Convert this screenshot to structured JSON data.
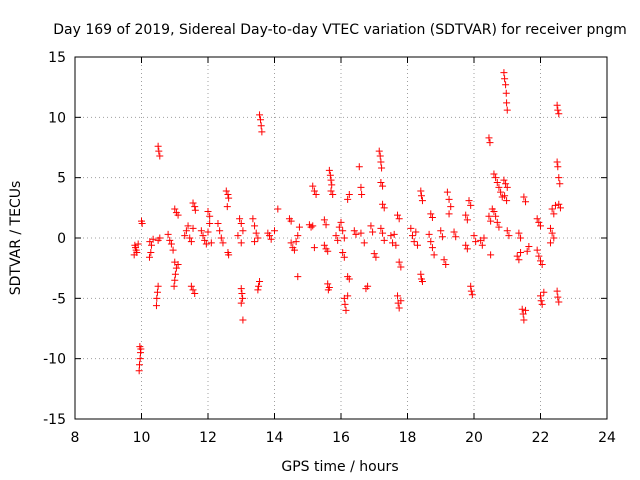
{
  "chart_data": {
    "type": "scatter",
    "title": "Day 169 of 2019, Sidereal Day-to-day VTEC variation (SDTVAR) for receiver pngm",
    "xlabel": "GPS time / hours",
    "ylabel": "SDTVAR / TECUs",
    "xlim": [
      8,
      24
    ],
    "ylim": [
      -15,
      15
    ],
    "xticks": [
      "8",
      "10",
      "12",
      "14",
      "16",
      "18",
      "20",
      "22",
      "24"
    ],
    "yticks": [
      "-15",
      "-10",
      "-5",
      "0",
      "5",
      "10",
      "15"
    ],
    "grid": true,
    "marker": "+",
    "marker_color": "#ff0000",
    "series": [
      {
        "name": "SDTVAR",
        "points": [
          [
            9.8,
            -0.6
          ],
          [
            9.82,
            -0.8
          ],
          [
            9.84,
            -1.0
          ],
          [
            9.86,
            -1.2
          ],
          [
            9.78,
            -1.4
          ],
          [
            9.9,
            -0.5
          ],
          [
            9.95,
            -9.0
          ],
          [
            9.97,
            -9.5
          ],
          [
            9.96,
            -10.0
          ],
          [
            9.94,
            -10.5
          ],
          [
            9.93,
            -11.0
          ],
          [
            9.98,
            -9.2
          ],
          [
            10.0,
            1.4
          ],
          [
            10.02,
            1.2
          ],
          [
            10.25,
            -0.3
          ],
          [
            10.3,
            -0.6
          ],
          [
            10.28,
            -1.2
          ],
          [
            10.24,
            -1.6
          ],
          [
            10.35,
            -0.1
          ],
          [
            10.5,
            7.6
          ],
          [
            10.52,
            7.2
          ],
          [
            10.55,
            6.8
          ],
          [
            10.5,
            -4.0
          ],
          [
            10.48,
            -4.5
          ],
          [
            10.46,
            -5.0
          ],
          [
            10.45,
            -5.6
          ],
          [
            10.5,
            -0.2
          ],
          [
            10.55,
            0.0
          ],
          [
            10.8,
            0.3
          ],
          [
            10.85,
            -0.2
          ],
          [
            10.9,
            -0.5
          ],
          [
            10.95,
            -1.0
          ],
          [
            11.0,
            2.4
          ],
          [
            11.05,
            2.1
          ],
          [
            11.1,
            1.9
          ],
          [
            11.0,
            -2.0
          ],
          [
            11.05,
            -2.5
          ],
          [
            11.02,
            -3.0
          ],
          [
            11.0,
            -3.5
          ],
          [
            10.98,
            -4.0
          ],
          [
            11.1,
            -2.2
          ],
          [
            11.3,
            0.2
          ],
          [
            11.35,
            0.6
          ],
          [
            11.4,
            1.0
          ],
          [
            11.45,
            0.0
          ],
          [
            11.5,
            -0.3
          ],
          [
            11.55,
            0.8
          ],
          [
            11.55,
            2.9
          ],
          [
            11.6,
            2.6
          ],
          [
            11.62,
            2.3
          ],
          [
            11.5,
            -4.0
          ],
          [
            11.55,
            -4.3
          ],
          [
            11.6,
            -4.6
          ],
          [
            11.8,
            0.6
          ],
          [
            11.85,
            0.2
          ],
          [
            11.9,
            -0.2
          ],
          [
            11.95,
            -0.5
          ],
          [
            12.0,
            0.5
          ],
          [
            12.05,
            1.2
          ],
          [
            12.0,
            2.2
          ],
          [
            12.05,
            1.8
          ],
          [
            12.1,
            -0.4
          ],
          [
            12.3,
            1.2
          ],
          [
            12.35,
            0.6
          ],
          [
            12.4,
            0.0
          ],
          [
            12.45,
            -0.4
          ],
          [
            12.55,
            3.9
          ],
          [
            12.6,
            3.6
          ],
          [
            12.62,
            3.3
          ],
          [
            12.58,
            2.6
          ],
          [
            12.6,
            -1.2
          ],
          [
            12.62,
            -1.4
          ],
          [
            12.95,
            1.6
          ],
          [
            13.0,
            1.2
          ],
          [
            13.05,
            0.6
          ],
          [
            13.0,
            -0.4
          ],
          [
            12.9,
            0.2
          ],
          [
            13.0,
            -4.2
          ],
          [
            13.02,
            -4.6
          ],
          [
            13.04,
            -5.0
          ],
          [
            13.0,
            -5.4
          ],
          [
            13.05,
            -6.8
          ],
          [
            13.35,
            1.6
          ],
          [
            13.4,
            1.0
          ],
          [
            13.45,
            0.4
          ],
          [
            13.5,
            0.0
          ],
          [
            13.4,
            -0.3
          ],
          [
            13.55,
            10.2
          ],
          [
            13.58,
            9.8
          ],
          [
            13.6,
            9.3
          ],
          [
            13.62,
            8.8
          ],
          [
            13.55,
            -3.6
          ],
          [
            13.52,
            -4.0
          ],
          [
            13.5,
            -4.3
          ],
          [
            13.8,
            0.4
          ],
          [
            13.85,
            0.2
          ],
          [
            13.9,
            -0.1
          ],
          [
            14.0,
            0.6
          ],
          [
            14.1,
            2.4
          ],
          [
            14.45,
            1.6
          ],
          [
            14.5,
            1.4
          ],
          [
            14.5,
            -0.4
          ],
          [
            14.55,
            -0.8
          ],
          [
            14.6,
            -1.0
          ],
          [
            14.65,
            -0.3
          ],
          [
            14.7,
            0.2
          ],
          [
            14.75,
            0.9
          ],
          [
            14.7,
            -3.2
          ],
          [
            15.05,
            1.1
          ],
          [
            15.1,
            0.9
          ],
          [
            15.15,
            1.0
          ],
          [
            15.15,
            4.3
          ],
          [
            15.2,
            3.9
          ],
          [
            15.25,
            3.6
          ],
          [
            15.2,
            -0.8
          ],
          [
            15.5,
            1.5
          ],
          [
            15.55,
            1.1
          ],
          [
            15.5,
            -0.6
          ],
          [
            15.55,
            -0.9
          ],
          [
            15.6,
            -1.1
          ],
          [
            15.65,
            5.6
          ],
          [
            15.68,
            5.2
          ],
          [
            15.7,
            4.8
          ],
          [
            15.72,
            4.4
          ],
          [
            15.6,
            -3.8
          ],
          [
            15.65,
            -4.1
          ],
          [
            15.62,
            -4.3
          ],
          [
            15.7,
            3.9
          ],
          [
            15.75,
            3.6
          ],
          [
            15.85,
            0.2
          ],
          [
            15.9,
            -0.2
          ],
          [
            15.95,
            0.9
          ],
          [
            16.0,
            1.3
          ],
          [
            16.05,
            0.6
          ],
          [
            16.1,
            0.0
          ],
          [
            16.05,
            -1.2
          ],
          [
            16.1,
            -1.6
          ],
          [
            16.1,
            -5.0
          ],
          [
            16.12,
            -5.5
          ],
          [
            16.15,
            -6.0
          ],
          [
            16.2,
            -4.8
          ],
          [
            16.2,
            3.2
          ],
          [
            16.25,
            3.6
          ],
          [
            16.2,
            -3.2
          ],
          [
            16.25,
            -3.4
          ],
          [
            16.4,
            0.6
          ],
          [
            16.45,
            0.3
          ],
          [
            16.55,
            5.9
          ],
          [
            16.6,
            4.2
          ],
          [
            16.62,
            3.6
          ],
          [
            16.6,
            0.4
          ],
          [
            16.7,
            -0.4
          ],
          [
            16.75,
            -4.2
          ],
          [
            16.8,
            -4.0
          ],
          [
            16.9,
            1.0
          ],
          [
            16.95,
            0.5
          ],
          [
            17.0,
            -1.3
          ],
          [
            17.05,
            -1.6
          ],
          [
            17.15,
            7.2
          ],
          [
            17.18,
            6.8
          ],
          [
            17.2,
            6.3
          ],
          [
            17.22,
            5.8
          ],
          [
            17.2,
            4.6
          ],
          [
            17.25,
            4.3
          ],
          [
            17.25,
            2.8
          ],
          [
            17.3,
            2.5
          ],
          [
            17.2,
            0.8
          ],
          [
            17.25,
            0.4
          ],
          [
            17.3,
            -0.2
          ],
          [
            17.5,
            0.2
          ],
          [
            17.55,
            -0.4
          ],
          [
            17.6,
            0.3
          ],
          [
            17.65,
            -0.6
          ],
          [
            17.7,
            1.9
          ],
          [
            17.75,
            1.6
          ],
          [
            17.75,
            -2.0
          ],
          [
            17.8,
            -2.4
          ],
          [
            17.7,
            -4.8
          ],
          [
            17.72,
            -5.4
          ],
          [
            17.75,
            -5.8
          ],
          [
            17.8,
            -5.2
          ],
          [
            18.1,
            0.8
          ],
          [
            18.15,
            0.2
          ],
          [
            18.2,
            -0.3
          ],
          [
            18.25,
            0.5
          ],
          [
            18.3,
            -0.6
          ],
          [
            18.4,
            3.9
          ],
          [
            18.42,
            3.5
          ],
          [
            18.45,
            3.1
          ],
          [
            18.4,
            -3.0
          ],
          [
            18.42,
            -3.4
          ],
          [
            18.45,
            -3.6
          ],
          [
            18.7,
            2.0
          ],
          [
            18.75,
            1.7
          ],
          [
            18.65,
            0.3
          ],
          [
            18.7,
            -0.3
          ],
          [
            18.75,
            -0.8
          ],
          [
            18.8,
            -1.4
          ],
          [
            19.0,
            0.6
          ],
          [
            19.05,
            0.1
          ],
          [
            19.1,
            -1.8
          ],
          [
            19.15,
            -2.2
          ],
          [
            19.2,
            3.8
          ],
          [
            19.25,
            3.2
          ],
          [
            19.3,
            2.6
          ],
          [
            19.25,
            2.0
          ],
          [
            19.4,
            0.5
          ],
          [
            19.45,
            0.1
          ],
          [
            19.75,
            1.9
          ],
          [
            19.8,
            1.5
          ],
          [
            19.75,
            -0.6
          ],
          [
            19.8,
            -0.9
          ],
          [
            19.85,
            3.1
          ],
          [
            19.9,
            2.7
          ],
          [
            19.9,
            -4.0
          ],
          [
            19.92,
            -4.4
          ],
          [
            19.95,
            -4.7
          ],
          [
            20.0,
            0.2
          ],
          [
            20.05,
            -0.3
          ],
          [
            20.2,
            -0.2
          ],
          [
            20.25,
            -0.6
          ],
          [
            20.3,
            0.0
          ],
          [
            20.45,
            8.3
          ],
          [
            20.48,
            7.9
          ],
          [
            20.45,
            1.8
          ],
          [
            20.5,
            1.4
          ],
          [
            20.55,
            2.4
          ],
          [
            20.5,
            -1.4
          ],
          [
            20.6,
            5.3
          ],
          [
            20.65,
            5.0
          ],
          [
            20.7,
            4.6
          ],
          [
            20.75,
            4.2
          ],
          [
            20.8,
            3.8
          ],
          [
            20.85,
            3.4
          ],
          [
            20.6,
            2.2
          ],
          [
            20.65,
            1.8
          ],
          [
            20.7,
            1.3
          ],
          [
            20.75,
            0.9
          ],
          [
            20.9,
            13.7
          ],
          [
            20.92,
            13.2
          ],
          [
            20.95,
            12.7
          ],
          [
            20.97,
            12.0
          ],
          [
            20.98,
            11.2
          ],
          [
            21.0,
            10.6
          ],
          [
            20.9,
            4.8
          ],
          [
            20.95,
            4.5
          ],
          [
            21.0,
            4.2
          ],
          [
            20.92,
            3.5
          ],
          [
            20.98,
            3.1
          ],
          [
            21.0,
            0.6
          ],
          [
            21.05,
            0.2
          ],
          [
            21.3,
            -1.5
          ],
          [
            21.35,
            -1.8
          ],
          [
            21.4,
            -1.2
          ],
          [
            21.35,
            0.4
          ],
          [
            21.4,
            0.0
          ],
          [
            21.5,
            3.4
          ],
          [
            21.55,
            3.0
          ],
          [
            21.45,
            -5.9
          ],
          [
            21.48,
            -6.3
          ],
          [
            21.5,
            -6.8
          ],
          [
            21.55,
            -6.0
          ],
          [
            21.6,
            -1.1
          ],
          [
            21.65,
            -0.7
          ],
          [
            21.9,
            1.6
          ],
          [
            21.95,
            1.3
          ],
          [
            22.0,
            1.0
          ],
          [
            21.9,
            -1.0
          ],
          [
            21.95,
            -1.5
          ],
          [
            22.0,
            -1.9
          ],
          [
            22.05,
            -2.2
          ],
          [
            22.0,
            -4.8
          ],
          [
            22.02,
            -5.2
          ],
          [
            22.05,
            -5.5
          ],
          [
            22.1,
            -4.5
          ],
          [
            22.3,
            0.8
          ],
          [
            22.35,
            0.4
          ],
          [
            22.4,
            0.0
          ],
          [
            22.3,
            -0.4
          ],
          [
            22.35,
            2.4
          ],
          [
            22.4,
            2.0
          ],
          [
            22.45,
            2.7
          ],
          [
            22.5,
            11.0
          ],
          [
            22.52,
            10.6
          ],
          [
            22.55,
            10.3
          ],
          [
            22.5,
            6.3
          ],
          [
            22.52,
            5.9
          ],
          [
            22.55,
            5.0
          ],
          [
            22.58,
            4.5
          ],
          [
            22.55,
            2.8
          ],
          [
            22.6,
            2.5
          ],
          [
            22.5,
            -4.4
          ],
          [
            22.52,
            -4.9
          ],
          [
            22.55,
            -5.3
          ]
        ]
      }
    ]
  }
}
